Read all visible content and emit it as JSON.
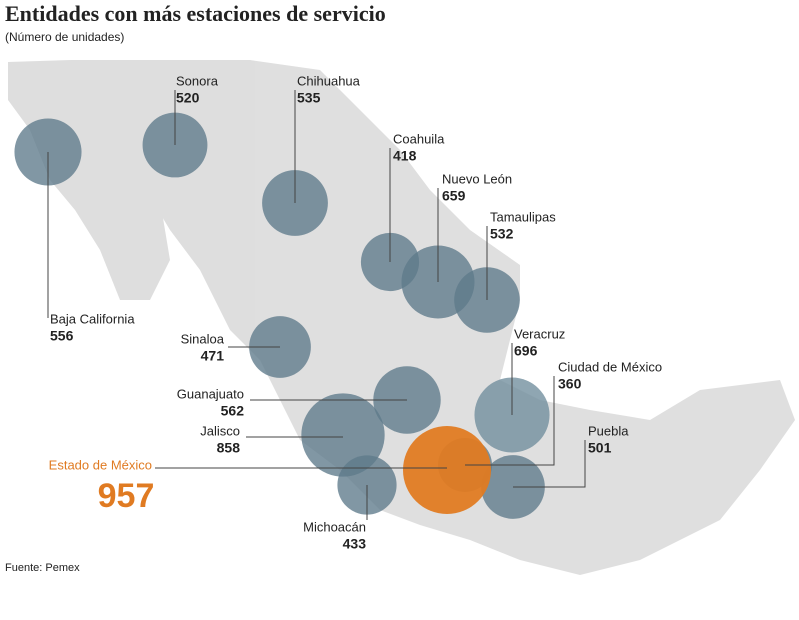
{
  "chart_data": {
    "type": "bubble",
    "title": "Entidades con más estaciones de servicio",
    "subtitle": "(Número de unidades)",
    "source": "Fuente: Pemex",
    "categories": [
      "Baja California",
      "Sonora",
      "Chihuahua",
      "Coahuila",
      "Nuevo León",
      "Tamaulipas",
      "Sinaloa",
      "Guanajuato",
      "Jalisco",
      "Veracruz",
      "Ciudad de México",
      "Puebla",
      "Estado de México",
      "Michoacán"
    ],
    "values": [
      556,
      520,
      535,
      418,
      659,
      532,
      471,
      562,
      858,
      696,
      360,
      501,
      957,
      433
    ],
    "colors": [
      "#5d7a8a",
      "#5d7a8a",
      "#5d7a8a",
      "#5d7a8a",
      "#5d7a8a",
      "#5d7a8a",
      "#5d7a8a",
      "#5d7a8a",
      "#5d7a8a",
      "#6f8d9c",
      "#5d7a8a",
      "#5d7a8a",
      "#e07b22",
      "#5d7a8a"
    ]
  }
}
